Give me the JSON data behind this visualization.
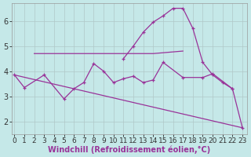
{
  "background_color": "#c5e8e8",
  "grid_color": "#b0c8c8",
  "line_color": "#993399",
  "x_label": "Windchill (Refroidissement éolien,°C)",
  "x_ticks": [
    0,
    1,
    2,
    3,
    4,
    5,
    6,
    7,
    8,
    9,
    10,
    11,
    12,
    13,
    14,
    15,
    16,
    17,
    18,
    19,
    20,
    21,
    22,
    23
  ],
  "y_ticks": [
    2,
    3,
    4,
    5,
    6
  ],
  "ylim": [
    1.5,
    6.7
  ],
  "xlim": [
    -0.3,
    23.5
  ],
  "line1": {
    "x": [
      0,
      23
    ],
    "y": [
      3.85,
      1.75
    ]
  },
  "line2": {
    "x": [
      0,
      1,
      3,
      5,
      6,
      7,
      8,
      9,
      10,
      11,
      12,
      13,
      14,
      15,
      17,
      19,
      20,
      22,
      23
    ],
    "y": [
      3.85,
      3.35,
      3.85,
      2.9,
      3.3,
      3.55,
      4.3,
      4.0,
      3.55,
      3.7,
      3.8,
      3.55,
      3.65,
      4.35,
      3.75,
      3.75,
      3.9,
      3.3,
      1.75
    ]
  },
  "line3": {
    "x": [
      2,
      14,
      17
    ],
    "y": [
      4.7,
      4.7,
      4.8
    ]
  },
  "line4": {
    "x": [
      11,
      12,
      13,
      14,
      15,
      16,
      17,
      18,
      19,
      20,
      21,
      22
    ],
    "y": [
      4.5,
      5.0,
      5.55,
      5.95,
      6.2,
      6.5,
      6.5,
      5.7,
      4.35,
      3.85,
      3.55,
      3.3
    ]
  },
  "fontsize_xlabel": 7,
  "fontsize_ytick": 7,
  "fontsize_xtick": 6.5
}
